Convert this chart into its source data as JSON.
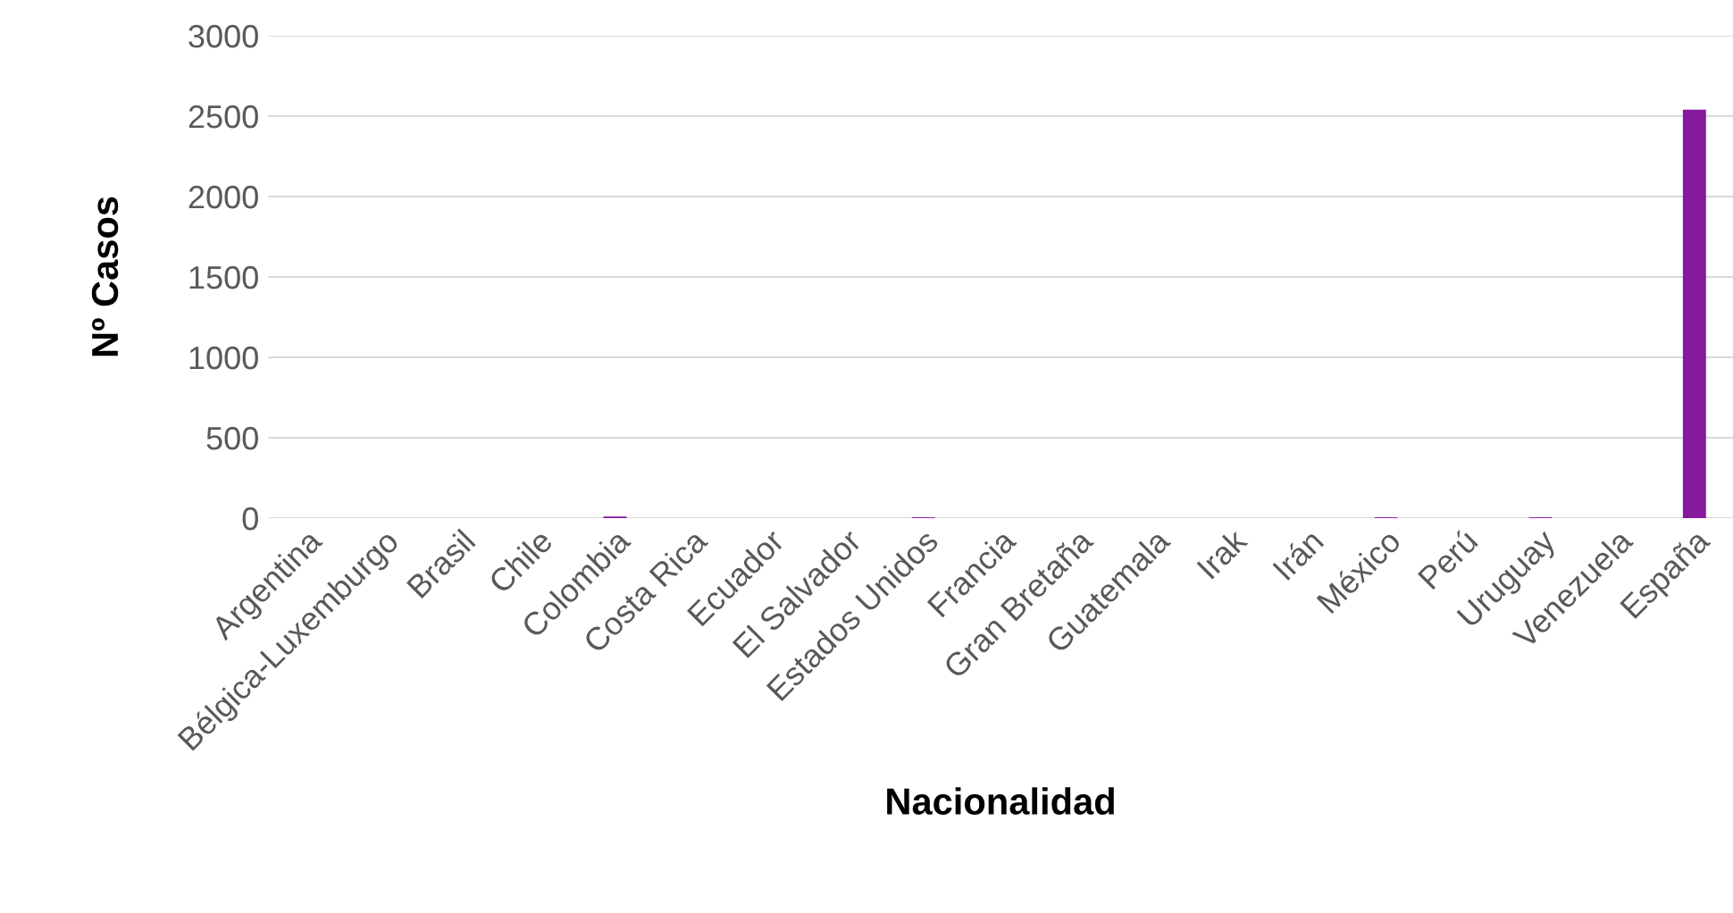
{
  "chart_data": {
    "type": "bar",
    "xlabel": "Nacionalidad",
    "ylabel": "Nº Casos",
    "categories": [
      "Argentina",
      "Bélgica-Luxemburgo",
      "Brasil",
      "Chile",
      "Colombia",
      "Costa Rica",
      "Ecuador",
      "El Salvador",
      "Estados Unidos",
      "Francia",
      "Gran Bretaña",
      "Guatemala",
      "Irak",
      "Irán",
      "México",
      "Perú",
      "Uruguay",
      "Venezuela",
      "España"
    ],
    "values": [
      null,
      null,
      null,
      null,
      10,
      null,
      null,
      null,
      5,
      null,
      null,
      null,
      null,
      null,
      5,
      null,
      5,
      null,
      2540
    ],
    "color": "#861a9e",
    "ylim": [
      0,
      3000
    ],
    "yticks": [
      0,
      500,
      1000,
      1500,
      2000,
      2500,
      3000
    ],
    "grid": "y",
    "legend": false
  }
}
